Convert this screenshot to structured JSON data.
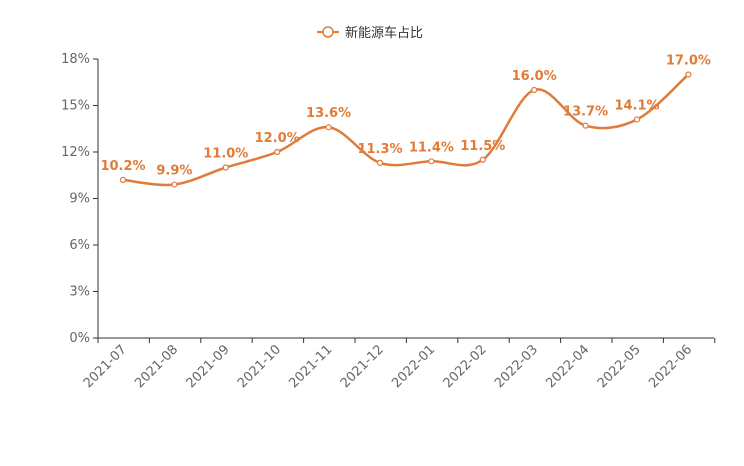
{
  "chart_data": {
    "type": "line",
    "title": "",
    "xlabel": "",
    "ylabel": "",
    "categories": [
      "2021-07",
      "2021-08",
      "2021-09",
      "2021-10",
      "2021-11",
      "2021-12",
      "2022-01",
      "2022-02",
      "2022-03",
      "2022-04",
      "2022-05",
      "2022-06"
    ],
    "series": [
      {
        "name": "新能源车占比",
        "values": [
          10.2,
          9.9,
          11.0,
          12.0,
          13.6,
          11.3,
          11.4,
          11.5,
          16.0,
          13.7,
          14.1,
          17.0
        ],
        "labels": [
          "10.2%",
          "9.9%",
          "11.0%",
          "12.0%",
          "13.6%",
          "11.3%",
          "11.4%",
          "11.5%",
          "16.0%",
          "13.7%",
          "14.1%",
          "17.0%"
        ]
      }
    ],
    "y_ticks": [
      0,
      3,
      6,
      9,
      12,
      15,
      18
    ],
    "y_tick_labels": [
      "0%",
      "3%",
      "6%",
      "9%",
      "12%",
      "15%",
      "18%"
    ],
    "ylim": [
      0,
      18
    ],
    "grid": false,
    "legend_position": "top-center",
    "line_smooth": true,
    "colors": {
      "series": "#e07b39",
      "axis": "#333333",
      "tick_text": "#666666"
    }
  }
}
